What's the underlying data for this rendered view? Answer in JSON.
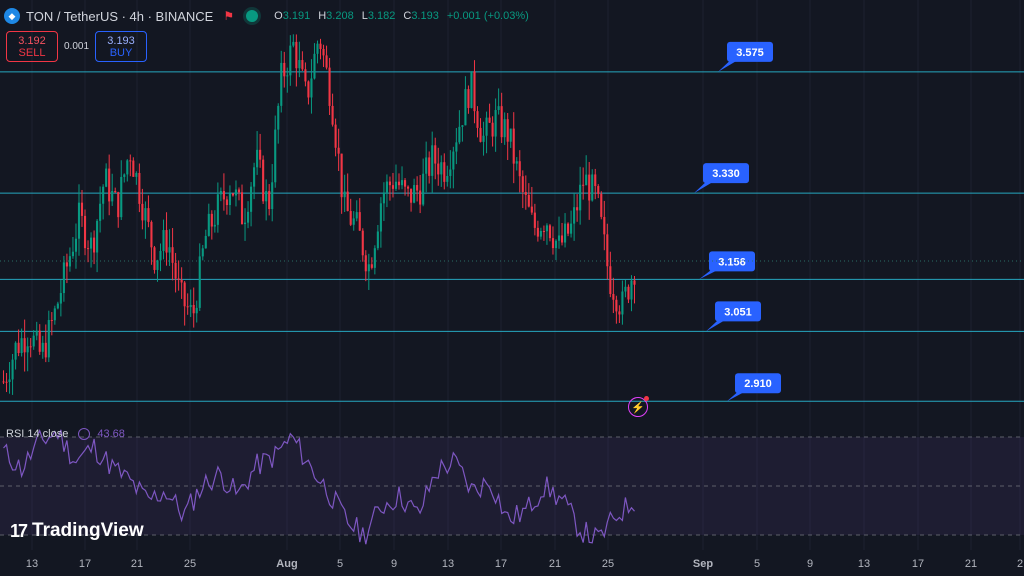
{
  "header": {
    "symbol": "TON / TetherUS · 4h · BINANCE",
    "open_label": "O",
    "open": "3.191",
    "high_label": "H",
    "high": "3.208",
    "low_label": "L",
    "low": "3.182",
    "close_label": "C",
    "close": "3.193",
    "change": "+0.001 (+0.03%)"
  },
  "trade": {
    "sell_price": "3.192",
    "sell_label": "SELL",
    "spread": "0.001",
    "buy_price": "3.193",
    "buy_label": "BUY"
  },
  "rsi": {
    "label": "RSI 14 close",
    "value": "43.68"
  },
  "watermark": "TradingView",
  "colors": {
    "bg": "#131722",
    "up": "#089981",
    "down": "#f23645",
    "level": "#26a7bf",
    "callout": "#2962ff",
    "rsi": "#7e57c2"
  },
  "chart_data": {
    "type": "candlestick",
    "price_range": [
      2.86,
      3.72
    ],
    "x_ticks": [
      "13",
      "17",
      "21",
      "25",
      "Aug",
      "5",
      "9",
      "13",
      "17",
      "21",
      "25",
      "Sep",
      "5",
      "9",
      "13",
      "17",
      "21",
      "2"
    ],
    "levels": [
      {
        "value": 3.575,
        "label": "3.575"
      },
      {
        "value": 3.33,
        "label": "3.330"
      },
      {
        "value": 3.156,
        "label": "3.156"
      },
      {
        "value": 3.051,
        "label": "3.051"
      },
      {
        "value": 2.91,
        "label": "2.910"
      }
    ],
    "close_path": [
      2.95,
      3.02,
      3.05,
      3.0,
      3.08,
      3.18,
      3.28,
      3.22,
      3.36,
      3.3,
      3.42,
      3.31,
      3.2,
      3.24,
      3.12,
      3.08,
      3.24,
      3.3,
      3.35,
      3.28,
      3.4,
      3.3,
      3.56,
      3.63,
      3.52,
      3.65,
      3.52,
      3.3,
      3.26,
      3.18,
      3.33,
      3.36,
      3.32,
      3.34,
      3.4,
      3.38,
      3.46,
      3.55,
      3.44,
      3.48,
      3.45,
      3.34,
      3.26,
      3.28,
      3.22,
      3.26,
      3.36,
      3.32,
      3.16,
      3.1,
      3.18
    ],
    "rsi_levels": [
      70,
      50,
      30
    ],
    "rsi_path": [
      64,
      57,
      68,
      72,
      60,
      66,
      58,
      52,
      44,
      48,
      38,
      50,
      55,
      46,
      58,
      62,
      70,
      58,
      48,
      36,
      30,
      42,
      46,
      38,
      56,
      60,
      48,
      52,
      36,
      40,
      50,
      44,
      32,
      28,
      38,
      44
    ]
  }
}
